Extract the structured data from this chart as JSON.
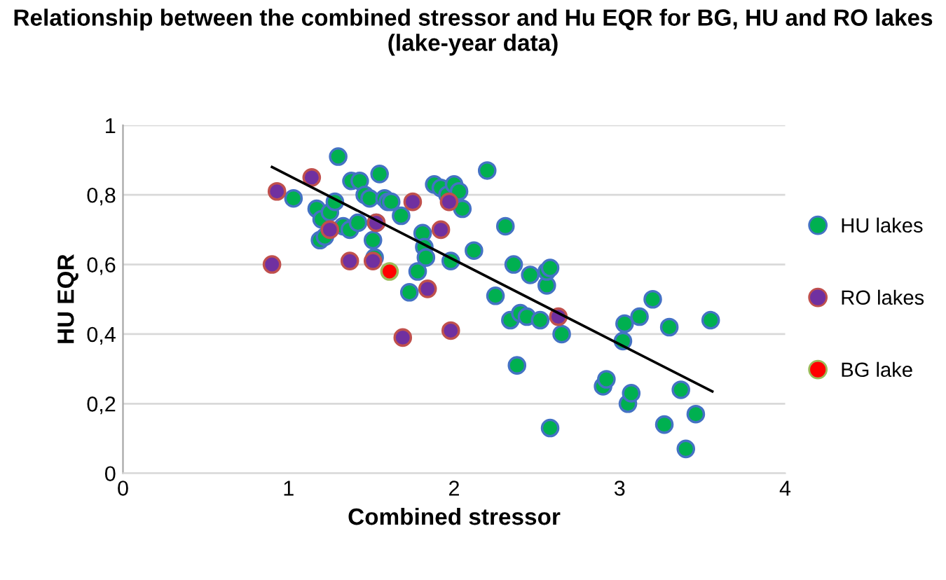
{
  "chart_data": {
    "type": "scatter",
    "title": "Relationship between the combined stressor and Hu EQR for BG, HU and RO lakes (lake-year data)",
    "xlabel": "Combined stressor",
    "ylabel": "HU EQR",
    "xlim": [
      0,
      4
    ],
    "xticks": [
      0,
      1,
      2,
      3,
      4
    ],
    "ylim": [
      0,
      1
    ],
    "yticks": [
      {
        "value": 0,
        "label": "0"
      },
      {
        "value": 0.2,
        "label": "0,2"
      },
      {
        "value": 0.4,
        "label": "0,4"
      },
      {
        "value": 0.6,
        "label": "0,6"
      },
      {
        "value": 0.8,
        "label": "0,8"
      },
      {
        "value": 1,
        "label": "1"
      }
    ],
    "grid": "y",
    "legend": "right",
    "marker": "circle",
    "series": [
      {
        "name": "HU lakes",
        "color": "#00b050",
        "x": [
          1.03,
          1.17,
          1.2,
          1.19,
          1.22,
          1.25,
          1.3,
          1.33,
          1.28,
          1.37,
          1.38,
          1.43,
          1.46,
          1.49,
          1.51,
          1.55,
          1.52,
          1.42,
          1.53,
          1.58,
          1.6,
          1.62,
          1.68,
          1.73,
          1.78,
          1.81,
          1.82,
          1.83,
          1.88,
          1.92,
          1.96,
          1.98,
          2.0,
          2.05,
          2.03,
          2.12,
          2.2,
          2.25,
          2.31,
          2.34,
          2.36,
          2.4,
          2.44,
          2.38,
          2.46,
          2.52,
          2.56,
          2.56,
          2.58,
          2.58,
          2.65,
          2.9,
          2.92,
          3.02,
          3.03,
          3.05,
          3.07,
          3.12,
          3.2,
          3.27,
          3.3,
          3.37,
          3.4,
          3.46,
          3.55
        ],
        "values": [
          0.79,
          0.76,
          0.73,
          0.67,
          0.68,
          0.75,
          0.91,
          0.71,
          0.78,
          0.7,
          0.84,
          0.84,
          0.8,
          0.79,
          0.67,
          0.86,
          0.62,
          0.72,
          0.72,
          0.79,
          0.78,
          0.78,
          0.74,
          0.52,
          0.58,
          0.69,
          0.65,
          0.62,
          0.83,
          0.82,
          0.8,
          0.61,
          0.83,
          0.76,
          0.81,
          0.64,
          0.87,
          0.51,
          0.71,
          0.44,
          0.6,
          0.46,
          0.45,
          0.31,
          0.57,
          0.44,
          0.54,
          0.58,
          0.59,
          0.13,
          0.4,
          0.25,
          0.27,
          0.38,
          0.43,
          0.2,
          0.23,
          0.45,
          0.5,
          0.14,
          0.42,
          0.24,
          0.07,
          0.17,
          0.44
        ]
      },
      {
        "name": "RO lakes",
        "color": "#7030a0",
        "x": [
          1.14,
          0.93,
          1.25,
          0.9,
          1.37,
          1.51,
          1.53,
          1.75,
          1.97,
          1.92,
          1.84,
          1.69,
          1.98,
          2.63
        ],
        "values": [
          0.85,
          0.81,
          0.7,
          0.6,
          0.61,
          0.61,
          0.72,
          0.78,
          0.78,
          0.7,
          0.53,
          0.39,
          0.41,
          0.45
        ]
      },
      {
        "name": "BG lake",
        "color": "#ff0000",
        "x": [
          1.61
        ],
        "values": [
          0.58
        ]
      },
      {
        "type": "line",
        "marker": "none",
        "color": "#000000",
        "x": [
          0.9,
          3.56
        ],
        "values": [
          0.88,
          0.235
        ]
      }
    ]
  }
}
